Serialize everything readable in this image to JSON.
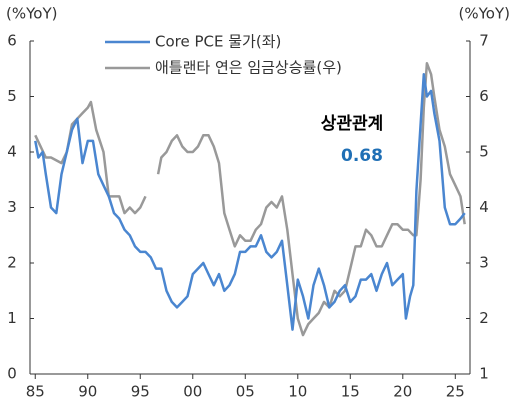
{
  "chart_data": {
    "type": "line",
    "left_unit": "(%YoY)",
    "right_unit": "(%YoY)",
    "annotations": [
      {
        "text": "상관관계",
        "color": "#000000"
      },
      {
        "text": "0.68",
        "color": "#1f6fb5"
      }
    ],
    "xlim": [
      1984.5,
      2026.4
    ],
    "xticks": [
      {
        "value": 1985,
        "label": "85"
      },
      {
        "value": 1990,
        "label": "90"
      },
      {
        "value": 1995,
        "label": "95"
      },
      {
        "value": 2000,
        "label": "00"
      },
      {
        "value": 2005,
        "label": "05"
      },
      {
        "value": 2010,
        "label": "10"
      },
      {
        "value": 2015,
        "label": "15"
      },
      {
        "value": 2020,
        "label": "20"
      },
      {
        "value": 2025,
        "label": "25"
      }
    ],
    "ylim": [
      0,
      6
    ],
    "yticks": [
      0,
      1,
      2,
      3,
      4,
      5,
      6
    ],
    "y2lim": [
      1,
      7
    ],
    "y2ticks": [
      1,
      2,
      3,
      4,
      5,
      6,
      7
    ],
    "series": [
      {
        "name": "Core PCE 물가(좌)",
        "color": "#4a86d0",
        "x": [
          1985,
          1985.3,
          1985.7,
          1986,
          1986.5,
          1987,
          1987.5,
          1988,
          1988.5,
          1989,
          1989.5,
          1990,
          1990.5,
          1991,
          1991.5,
          1992,
          1992.5,
          1993,
          1993.5,
          1994,
          1994.5,
          1995,
          1995.5,
          1996,
          1996.5,
          1997,
          1997.5,
          1998,
          1998.5,
          1999,
          1999.5,
          2000,
          2000.5,
          2001,
          2001.5,
          2002,
          2002.5,
          2003,
          2003.5,
          2004,
          2004.5,
          2005,
          2005.5,
          2006,
          2006.5,
          2007,
          2007.5,
          2008,
          2008.5,
          2009,
          2009.5,
          2010,
          2010.5,
          2011,
          2011.5,
          2012,
          2012.5,
          2013,
          2013.5,
          2014,
          2014.5,
          2015,
          2015.5,
          2016,
          2016.5,
          2017,
          2017.5,
          2018,
          2018.5,
          2019,
          2019.5,
          2020,
          2020.3,
          2020.7,
          2021,
          2021.3,
          2021.7,
          2022,
          2022.3,
          2022.7,
          2023,
          2023.5,
          2024,
          2024.5,
          2025,
          2025.5,
          2025.9
        ],
        "values": [
          4.2,
          3.9,
          4.0,
          3.6,
          3.0,
          2.9,
          3.6,
          4.0,
          4.4,
          4.6,
          3.8,
          4.2,
          4.2,
          3.6,
          3.4,
          3.2,
          2.9,
          2.8,
          2.6,
          2.5,
          2.3,
          2.2,
          2.2,
          2.1,
          1.9,
          1.9,
          1.5,
          1.3,
          1.2,
          1.3,
          1.4,
          1.8,
          1.9,
          2.0,
          1.8,
          1.6,
          1.8,
          1.5,
          1.6,
          1.8,
          2.2,
          2.2,
          2.3,
          2.3,
          2.5,
          2.2,
          2.1,
          2.2,
          2.4,
          1.6,
          0.8,
          1.7,
          1.4,
          1.0,
          1.6,
          1.9,
          1.6,
          1.2,
          1.3,
          1.5,
          1.6,
          1.3,
          1.4,
          1.7,
          1.7,
          1.8,
          1.5,
          1.8,
          2.0,
          1.6,
          1.7,
          1.8,
          1.0,
          1.4,
          1.6,
          3.3,
          4.5,
          5.4,
          5.0,
          5.1,
          4.7,
          4.2,
          3.0,
          2.7,
          2.7,
          2.8,
          2.9
        ]
      },
      {
        "name": "애틀랜타 연은 임금상승률(우)",
        "color": "#999999",
        "axis": "y2",
        "x": [
          1985,
          1986,
          1986.5,
          1987.5,
          1988,
          1988.5,
          1989,
          1989.5,
          1990,
          1990.3,
          1990.8,
          1991.5,
          1992,
          1992.5,
          1993,
          1993.5,
          1994,
          1994.5,
          1995,
          1995.5,
          1996,
          1996.7,
          1997,
          1997.5,
          1998,
          1998.5,
          1999,
          1999.5,
          2000,
          2000.5,
          2001,
          2001.5,
          2002,
          2002.5,
          2003,
          2003.5,
          2004,
          2004.5,
          2005,
          2005.5,
          2006,
          2006.5,
          2007,
          2007.5,
          2008,
          2008.5,
          2009,
          2009.5,
          2010,
          2010.5,
          2011,
          2011.5,
          2012,
          2012.5,
          2013,
          2013.5,
          2014,
          2014.5,
          2015,
          2015.5,
          2016,
          2016.5,
          2017,
          2017.5,
          2018,
          2018.5,
          2019,
          2019.5,
          2020,
          2020.5,
          2021,
          2021.3,
          2021.7,
          2022,
          2022.3,
          2022.7,
          2023,
          2023.5,
          2024,
          2024.5,
          2025,
          2025.5,
          2025.9
        ],
        "values": [
          5.3,
          4.9,
          4.9,
          4.8,
          5.0,
          5.5,
          5.6,
          5.7,
          5.8,
          5.9,
          5.4,
          5.0,
          4.2,
          4.2,
          4.2,
          3.9,
          4.0,
          3.9,
          4.0,
          4.2,
          null,
          4.6,
          4.9,
          5.0,
          5.2,
          5.3,
          5.1,
          5.0,
          5.0,
          5.1,
          5.3,
          5.3,
          5.1,
          4.8,
          3.9,
          3.6,
          3.3,
          3.5,
          3.4,
          3.4,
          3.6,
          3.7,
          4.0,
          4.1,
          4.0,
          4.2,
          3.6,
          2.8,
          2.0,
          1.7,
          1.9,
          2.0,
          2.1,
          2.3,
          2.2,
          2.5,
          2.4,
          2.5,
          2.9,
          3.3,
          3.3,
          3.6,
          3.5,
          3.3,
          3.3,
          3.5,
          3.7,
          3.7,
          3.6,
          3.6,
          3.5,
          3.5,
          4.5,
          5.8,
          6.6,
          6.4,
          6.0,
          5.4,
          5.1,
          4.6,
          4.4,
          4.2,
          3.7
        ]
      }
    ]
  }
}
